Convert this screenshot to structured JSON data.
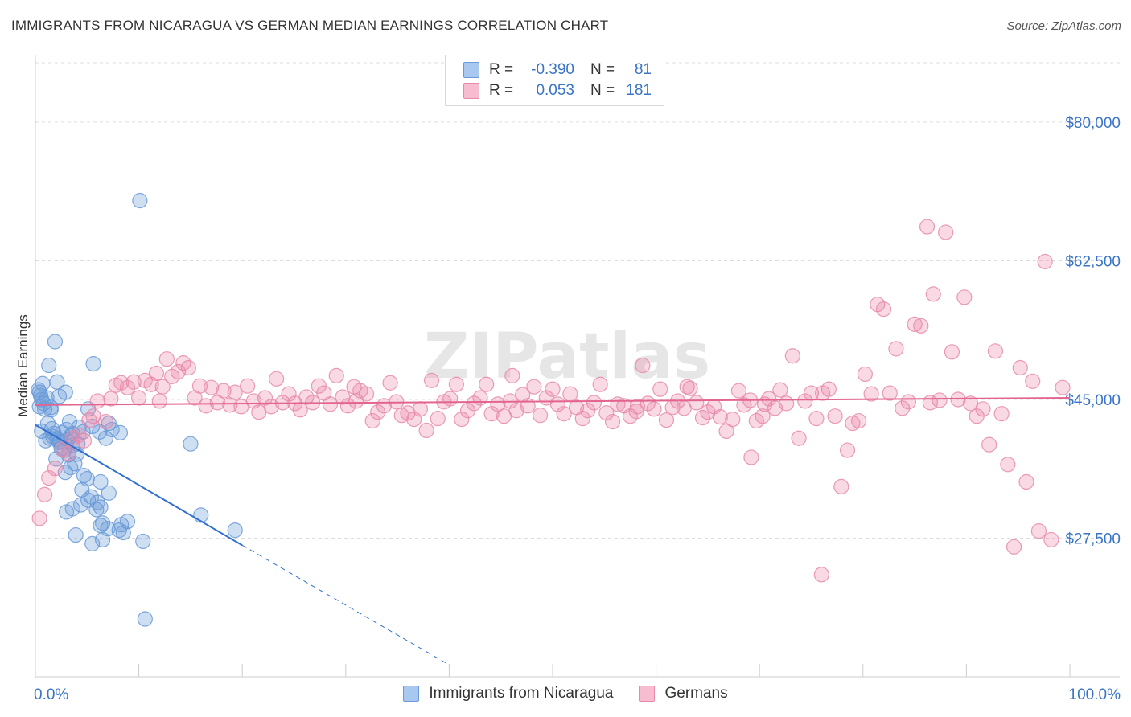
{
  "header": {
    "title": "IMMIGRANTS FROM NICARAGUA VS GERMAN MEDIAN EARNINGS CORRELATION CHART",
    "source": "Source: ZipAtlas.com"
  },
  "legend_stats": [
    {
      "r_label": "R =",
      "r_value": "-0.390",
      "n_label": "N =",
      "n_value": "81",
      "color": "#a8c8f0",
      "border": "#6a9ad8"
    },
    {
      "r_label": "R =",
      "r_value": "0.053",
      "n_label": "N =",
      "n_value": "181",
      "color": "#f8bcd0",
      "border": "#e889aa"
    }
  ],
  "colors": {
    "blue_dot": "#6a9ad8",
    "blue_line": "#2f6fd1",
    "pink_dot": "#e889aa",
    "pink_line": "#e2648f",
    "tick_text": "#3a74c6",
    "grid": "#dddddd"
  },
  "chart_data": {
    "type": "scatter",
    "ylabel": "Median Earnings",
    "xlim": [
      0,
      100
    ],
    "ylim": [
      10000,
      87500
    ],
    "x_tick_labels": [
      "0.0%",
      "100.0%"
    ],
    "y_ticks": [
      {
        "value": 27500,
        "label": "$27,500"
      },
      {
        "value": 45000,
        "label": "$45,000"
      },
      {
        "value": 62500,
        "label": "$62,500"
      },
      {
        "value": 80000,
        "label": "$80,000"
      }
    ],
    "series": [
      {
        "name": "Immigrants from Nicaragua",
        "trend": {
          "x0": 0,
          "y0": 41800,
          "x1": 20,
          "y1": 26600,
          "dash_to_x": 40,
          "dash_to_y": 11500
        },
        "points": [
          [
            0.3,
            46.2
          ],
          [
            0.5,
            45.5
          ],
          [
            0.4,
            44.1
          ],
          [
            0.7,
            47.0
          ],
          [
            1.1,
            45.2
          ],
          [
            0.8,
            44.5
          ],
          [
            1.3,
            49.3
          ],
          [
            1.5,
            44.0
          ],
          [
            1.2,
            42.0
          ],
          [
            0.6,
            41.0
          ],
          [
            1.8,
            40.7
          ],
          [
            2.1,
            40.0
          ],
          [
            2.3,
            39.6
          ],
          [
            1.6,
            41.3
          ],
          [
            2.6,
            40.8
          ],
          [
            3.0,
            41.2
          ],
          [
            3.4,
            40.4
          ],
          [
            3.6,
            39.2
          ],
          [
            3.2,
            38.0
          ],
          [
            2.8,
            38.6
          ],
          [
            2.0,
            37.5
          ],
          [
            1.9,
            52.3
          ],
          [
            2.1,
            47.2
          ],
          [
            2.3,
            45.4
          ],
          [
            2.9,
            45.9
          ],
          [
            3.3,
            42.2
          ],
          [
            3.6,
            40.7
          ],
          [
            4.2,
            41.5
          ],
          [
            4.6,
            40.9
          ],
          [
            5.1,
            43.8
          ],
          [
            5.5,
            41.6
          ],
          [
            6.2,
            40.9
          ],
          [
            6.8,
            40.1
          ],
          [
            7.1,
            42.0
          ],
          [
            7.4,
            41.2
          ],
          [
            8.2,
            40.8
          ],
          [
            5.6,
            49.5
          ],
          [
            10.1,
            70.1
          ],
          [
            15.0,
            39.4
          ],
          [
            4.0,
            38.1
          ],
          [
            3.8,
            36.9
          ],
          [
            3.4,
            36.4
          ],
          [
            2.9,
            35.8
          ],
          [
            4.7,
            35.4
          ],
          [
            5.0,
            35.0
          ],
          [
            4.5,
            33.6
          ],
          [
            6.3,
            34.6
          ],
          [
            5.1,
            32.3
          ],
          [
            5.4,
            32.7
          ],
          [
            6.0,
            32.0
          ],
          [
            6.3,
            31.4
          ],
          [
            7.1,
            33.2
          ],
          [
            3.0,
            30.8
          ],
          [
            3.6,
            31.2
          ],
          [
            4.4,
            31.7
          ],
          [
            5.9,
            31.1
          ],
          [
            6.5,
            29.4
          ],
          [
            6.3,
            29.1
          ],
          [
            8.3,
            29.2
          ],
          [
            8.9,
            29.6
          ],
          [
            8.5,
            28.2
          ],
          [
            7.0,
            28.7
          ],
          [
            8.1,
            28.5
          ],
          [
            3.9,
            27.9
          ],
          [
            5.5,
            26.8
          ],
          [
            6.5,
            27.3
          ],
          [
            10.4,
            27.1
          ],
          [
            16.0,
            30.4
          ],
          [
            19.3,
            28.5
          ],
          [
            10.6,
            17.3
          ],
          [
            1.4,
            40.1
          ],
          [
            2.4,
            39.7
          ],
          [
            0.9,
            43.8
          ],
          [
            1.0,
            39.8
          ],
          [
            1.7,
            40.3
          ],
          [
            2.5,
            38.8
          ],
          [
            3.1,
            39.9
          ],
          [
            4.1,
            39.4
          ],
          [
            0.4,
            45.9
          ],
          [
            0.6,
            45.0
          ],
          [
            1.5,
            43.7
          ]
        ]
      },
      {
        "name": "Germans",
        "trend": {
          "x0": 0,
          "y0": 44300,
          "x1": 100,
          "y1": 45200
        },
        "points": [
          [
            0.4,
            30.0
          ],
          [
            0.9,
            33.0
          ],
          [
            1.3,
            35.1
          ],
          [
            1.9,
            36.3
          ],
          [
            2.6,
            38.7
          ],
          [
            3.2,
            38.2
          ],
          [
            3.6,
            40.1
          ],
          [
            4.2,
            40.5
          ],
          [
            4.7,
            39.8
          ],
          [
            5.2,
            42.4
          ],
          [
            5.6,
            42.9
          ],
          [
            6.0,
            44.8
          ],
          [
            6.8,
            42.2
          ],
          [
            7.3,
            45.1
          ],
          [
            7.8,
            46.8
          ],
          [
            8.3,
            47.1
          ],
          [
            8.9,
            46.5
          ],
          [
            9.5,
            47.2
          ],
          [
            10.0,
            45.2
          ],
          [
            10.6,
            47.4
          ],
          [
            11.2,
            46.9
          ],
          [
            11.7,
            48.3
          ],
          [
            12.3,
            46.6
          ],
          [
            12.7,
            50.1
          ],
          [
            13.2,
            47.9
          ],
          [
            13.8,
            48.5
          ],
          [
            14.3,
            49.6
          ],
          [
            14.8,
            49.0
          ],
          [
            15.4,
            45.2
          ],
          [
            15.9,
            46.7
          ],
          [
            16.5,
            44.2
          ],
          [
            17.0,
            46.5
          ],
          [
            17.6,
            44.6
          ],
          [
            18.2,
            46.1
          ],
          [
            18.8,
            44.3
          ],
          [
            19.3,
            45.9
          ],
          [
            19.9,
            44.1
          ],
          [
            20.5,
            46.7
          ],
          [
            21.1,
            44.8
          ],
          [
            21.6,
            43.4
          ],
          [
            22.2,
            45.2
          ],
          [
            22.8,
            44.1
          ],
          [
            23.3,
            47.6
          ],
          [
            23.9,
            44.6
          ],
          [
            24.5,
            45.7
          ],
          [
            25.1,
            44.5
          ],
          [
            25.6,
            43.7
          ],
          [
            26.2,
            45.3
          ],
          [
            26.8,
            44.6
          ],
          [
            27.4,
            46.7
          ],
          [
            27.9,
            45.8
          ],
          [
            28.5,
            44.4
          ],
          [
            29.1,
            48.0
          ],
          [
            29.7,
            45.3
          ],
          [
            30.2,
            44.2
          ],
          [
            30.8,
            46.6
          ],
          [
            31.4,
            46.1
          ],
          [
            32.0,
            45.7
          ],
          [
            32.6,
            42.3
          ],
          [
            33.1,
            43.4
          ],
          [
            33.7,
            44.2
          ],
          [
            34.3,
            47.1
          ],
          [
            34.9,
            44.7
          ],
          [
            35.4,
            43.0
          ],
          [
            36.0,
            43.3
          ],
          [
            36.6,
            42.5
          ],
          [
            37.2,
            43.8
          ],
          [
            37.8,
            41.1
          ],
          [
            38.3,
            47.4
          ],
          [
            38.9,
            42.6
          ],
          [
            39.5,
            44.7
          ],
          [
            40.1,
            45.1
          ],
          [
            40.7,
            46.9
          ],
          [
            41.2,
            42.5
          ],
          [
            41.8,
            43.6
          ],
          [
            42.4,
            44.5
          ],
          [
            43.0,
            45.2
          ],
          [
            43.6,
            46.9
          ],
          [
            44.1,
            43.2
          ],
          [
            44.7,
            44.4
          ],
          [
            45.3,
            42.9
          ],
          [
            45.9,
            44.8
          ],
          [
            46.5,
            43.6
          ],
          [
            47.1,
            45.6
          ],
          [
            47.6,
            44.2
          ],
          [
            48.2,
            46.6
          ],
          [
            48.8,
            43.0
          ],
          [
            49.4,
            45.2
          ],
          [
            50.0,
            46.3
          ],
          [
            50.5,
            44.4
          ],
          [
            51.1,
            43.2
          ],
          [
            51.7,
            45.7
          ],
          [
            52.3,
            44.0
          ],
          [
            52.9,
            42.6
          ],
          [
            53.4,
            43.6
          ],
          [
            54.0,
            44.6
          ],
          [
            54.6,
            46.9
          ],
          [
            55.2,
            43.3
          ],
          [
            55.8,
            42.2
          ],
          [
            56.3,
            44.4
          ],
          [
            56.9,
            44.2
          ],
          [
            57.5,
            42.9
          ],
          [
            58.1,
            43.5
          ],
          [
            58.7,
            49.3
          ],
          [
            59.2,
            44.5
          ],
          [
            59.8,
            43.8
          ],
          [
            60.4,
            46.3
          ],
          [
            61.0,
            42.4
          ],
          [
            61.6,
            44.0
          ],
          [
            62.1,
            44.8
          ],
          [
            62.7,
            43.9
          ],
          [
            63.3,
            46.4
          ],
          [
            63.9,
            44.6
          ],
          [
            64.5,
            42.7
          ],
          [
            65.0,
            43.4
          ],
          [
            65.6,
            44.1
          ],
          [
            66.2,
            42.8
          ],
          [
            66.8,
            41.0
          ],
          [
            67.4,
            42.5
          ],
          [
            68.0,
            46.1
          ],
          [
            68.5,
            44.3
          ],
          [
            69.1,
            44.9
          ],
          [
            69.7,
            42.3
          ],
          [
            70.3,
            42.9
          ],
          [
            70.9,
            45.1
          ],
          [
            71.5,
            43.9
          ],
          [
            72.0,
            46.2
          ],
          [
            72.6,
            44.5
          ],
          [
            73.2,
            50.5
          ],
          [
            73.8,
            40.1
          ],
          [
            74.4,
            44.8
          ],
          [
            75.0,
            45.8
          ],
          [
            75.5,
            42.6
          ],
          [
            76.1,
            45.8
          ],
          [
            76.7,
            46.3
          ],
          [
            77.3,
            42.9
          ],
          [
            77.9,
            34.0
          ],
          [
            78.5,
            38.6
          ],
          [
            79.0,
            42.0
          ],
          [
            79.6,
            42.3
          ],
          [
            80.2,
            48.2
          ],
          [
            80.8,
            45.7
          ],
          [
            81.4,
            57.0
          ],
          [
            82.0,
            56.4
          ],
          [
            82.6,
            45.8
          ],
          [
            83.2,
            51.4
          ],
          [
            83.8,
            43.9
          ],
          [
            84.4,
            44.7
          ],
          [
            85.0,
            54.5
          ],
          [
            85.6,
            54.3
          ],
          [
            86.2,
            66.8
          ],
          [
            86.8,
            58.3
          ],
          [
            87.4,
            44.9
          ],
          [
            88.0,
            66.1
          ],
          [
            88.6,
            51.0
          ],
          [
            89.2,
            45.0
          ],
          [
            89.8,
            57.9
          ],
          [
            90.4,
            44.5
          ],
          [
            91.0,
            42.9
          ],
          [
            91.6,
            43.8
          ],
          [
            92.2,
            39.3
          ],
          [
            92.8,
            51.1
          ],
          [
            93.4,
            43.2
          ],
          [
            94.0,
            36.8
          ],
          [
            94.6,
            26.4
          ],
          [
            95.2,
            49.0
          ],
          [
            95.8,
            34.6
          ],
          [
            96.4,
            47.3
          ],
          [
            97.0,
            28.4
          ],
          [
            97.6,
            62.4
          ],
          [
            98.2,
            27.3
          ],
          [
            99.3,
            46.5
          ],
          [
            76.0,
            22.9
          ],
          [
            69.2,
            37.7
          ],
          [
            31.0,
            44.8
          ],
          [
            46.1,
            48.0
          ],
          [
            58.2,
            44.1
          ],
          [
            63.0,
            46.6
          ],
          [
            70.5,
            44.4
          ],
          [
            86.5,
            44.6
          ],
          [
            12.0,
            44.8
          ]
        ]
      }
    ]
  }
}
